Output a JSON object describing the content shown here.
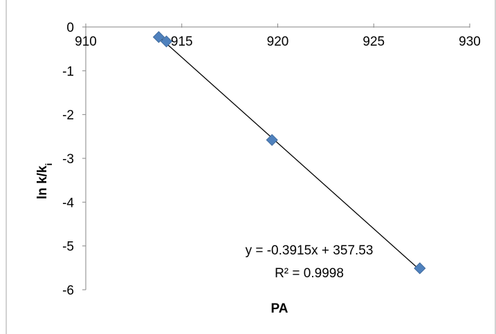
{
  "chart_data": {
    "type": "scatter",
    "title": "",
    "xlabel": "PA",
    "ylabel": {
      "main": "ln k/k",
      "subscript": "i"
    },
    "xlim": [
      910,
      930
    ],
    "ylim": [
      -6,
      0
    ],
    "x_ticks": [
      910,
      915,
      920,
      925,
      930
    ],
    "y_ticks": [
      0,
      -1,
      -2,
      -3,
      -4,
      -5,
      -6
    ],
    "x_tick_labels": [
      "910",
      "915",
      "920",
      "925",
      "930"
    ],
    "y_tick_labels": [
      "0",
      "-1",
      "-2",
      "-3",
      "-4",
      "-5",
      "-6"
    ],
    "grid": false,
    "legend": "none",
    "series": [
      {
        "marker": "diamond",
        "color": "#4F81BD",
        "x": [
          913.8,
          914.2,
          919.7,
          927.4
        ],
        "y": [
          -0.23,
          -0.33,
          -2.58,
          -5.51
        ]
      }
    ],
    "trendline": {
      "slope": -0.3915,
      "intercept": 357.53,
      "x_range": [
        913.8,
        927.4
      ],
      "color": "#000000",
      "equation_label": "y = -0.3915x + 357.53",
      "r2_label": "R² = 0.9998"
    }
  }
}
